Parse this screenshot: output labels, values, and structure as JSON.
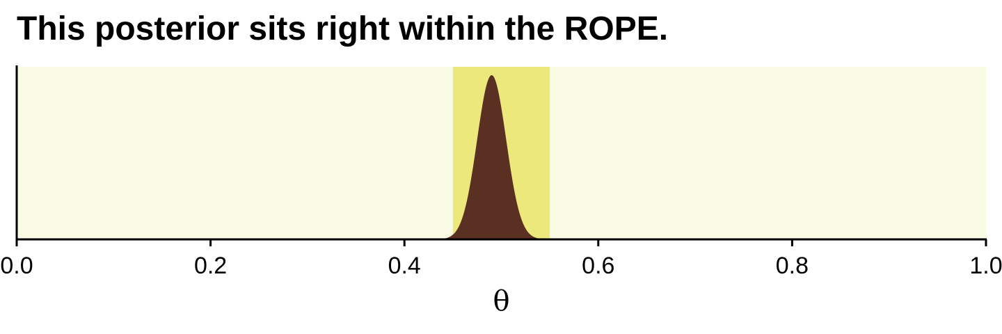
{
  "chart_data": {
    "type": "area",
    "title": "This posterior sits right within the ROPE.",
    "xlabel": "θ",
    "ylabel": "",
    "xlim": [
      0,
      1
    ],
    "x_ticks": [
      0.0,
      0.2,
      0.4,
      0.6,
      0.8,
      1.0
    ],
    "x_tick_labels": [
      "0.0",
      "0.2",
      "0.4",
      "0.6",
      "0.8",
      "1.0"
    ],
    "rope": [
      0.45,
      0.55
    ],
    "posterior": {
      "mean": 0.49,
      "sd": 0.015
    },
    "grid": false,
    "legend": "none",
    "colors": {
      "background_region": "#f9fbe4",
      "rope_region": "#ece87c",
      "posterior_fill": "#5a3022",
      "axis": "#000000"
    }
  }
}
